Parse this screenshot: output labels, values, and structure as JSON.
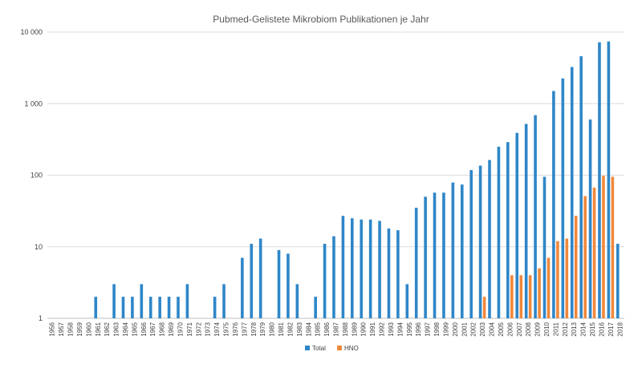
{
  "chart_data": {
    "type": "bar",
    "title": "Pubmed-Gelistete Mikrobiom Publikationen je Jahr",
    "xlabel": "",
    "ylabel": "",
    "yscale": "log",
    "ylim": [
      1,
      10000
    ],
    "y_ticks": [
      1,
      10,
      100,
      1000,
      10000
    ],
    "y_tick_labels": [
      "1",
      "10",
      "100",
      "1 000",
      "10 000"
    ],
    "grid": "horizontal",
    "legend_position": "bottom",
    "categories": [
      "1956",
      "1957",
      "1958",
      "1959",
      "1960",
      "1961",
      "1962",
      "1963",
      "1964",
      "1965",
      "1966",
      "1967",
      "1968",
      "1969",
      "1970",
      "1971",
      "1972",
      "1973",
      "1974",
      "1975",
      "1976",
      "1977",
      "1978",
      "1979",
      "1980",
      "1981",
      "1982",
      "1983",
      "1984",
      "1985",
      "1986",
      "1987",
      "1988",
      "1989",
      "1990",
      "1991",
      "1992",
      "1993",
      "1994",
      "1995",
      "1996",
      "1997",
      "1998",
      "1999",
      "2000",
      "2001",
      "2002",
      "2003",
      "2004",
      "2005",
      "2006",
      "2007",
      "2008",
      "2009",
      "2010",
      "2011",
      "2012",
      "2013",
      "2014",
      "2015",
      "2016",
      "2017",
      "2018"
    ],
    "series": [
      {
        "name": "Total",
        "color": "#2e86c8",
        "values": [
          null,
          null,
          null,
          null,
          null,
          2,
          null,
          3,
          2,
          2,
          3,
          2,
          2,
          2,
          2,
          3,
          null,
          null,
          2,
          3,
          null,
          7,
          11,
          13,
          null,
          9,
          8,
          3,
          null,
          2,
          11,
          14,
          27,
          25,
          24,
          24,
          23,
          18,
          17,
          3,
          35,
          50,
          57,
          57,
          79,
          74,
          118,
          136,
          163,
          250,
          290,
          390,
          520,
          690,
          95,
          1500,
          2250,
          3250,
          4600,
          600,
          7200,
          7400,
          11
        ]
      },
      {
        "name": "HNO",
        "color": "#f0883c",
        "values": [
          null,
          null,
          null,
          null,
          null,
          null,
          null,
          null,
          null,
          null,
          null,
          null,
          null,
          null,
          null,
          null,
          null,
          null,
          null,
          null,
          null,
          null,
          null,
          null,
          null,
          null,
          null,
          null,
          null,
          null,
          null,
          null,
          null,
          null,
          null,
          null,
          null,
          null,
          null,
          null,
          null,
          null,
          null,
          null,
          null,
          null,
          null,
          2,
          null,
          null,
          4,
          4,
          4,
          5,
          7,
          12,
          13,
          27,
          51,
          67,
          98,
          95,
          null
        ]
      }
    ]
  }
}
